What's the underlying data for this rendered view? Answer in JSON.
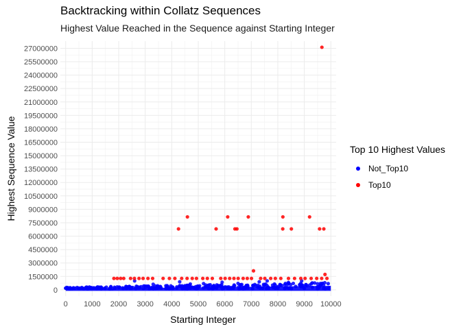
{
  "chart_data": {
    "type": "scatter",
    "title": "Backtracking within Collatz Sequences",
    "subtitle": "Highest Value Reached in the Sequence against Starting Integer",
    "xlabel": "Starting Integer",
    "ylabel": "Highest Sequence Value",
    "xlim": [
      -200,
      10200
    ],
    "ylim": [
      -700000,
      27800000
    ],
    "x_ticks": [
      0,
      1000,
      2000,
      3000,
      4000,
      5000,
      6000,
      7000,
      8000,
      9000,
      10000
    ],
    "y_ticks": [
      0,
      1500000,
      3000000,
      4500000,
      6000000,
      7500000,
      9000000,
      10500000,
      12000000,
      13500000,
      15000000,
      16500000,
      18000000,
      19500000,
      21000000,
      22500000,
      24000000,
      25500000,
      27000000
    ],
    "y_tick_labels": [
      "0",
      "1500000",
      "3000000",
      "4500000",
      "6000000",
      "7500000",
      "9000000",
      "10500000",
      "12000000",
      "13500000",
      "15000000",
      "16500000",
      "18000000",
      "19500000",
      "21000000",
      "22500000",
      "24000000",
      "25500000",
      "27000000"
    ],
    "x_tick_labels": [
      "0",
      "1000",
      "2000",
      "3000",
      "4000",
      "5000",
      "6000",
      "7000",
      "8000",
      "9000",
      "10000"
    ],
    "grid": true,
    "legend": {
      "title": "Top 10 Highest Values",
      "position": "right",
      "entries": [
        {
          "label": "Not_Top10",
          "color": "#0000ff"
        },
        {
          "label": "Top10",
          "color": "#ff0000"
        }
      ]
    },
    "series": [
      {
        "name": "Top10",
        "color": "#ff0000",
        "points": [
          [
            9663,
            27114424
          ],
          [
            4255,
            6810136
          ],
          [
            4591,
            8153620
          ],
          [
            5673,
            6810136
          ],
          [
            6110,
            8153620
          ],
          [
            6383,
            6810136
          ],
          [
            6458,
            6810136
          ],
          [
            6887,
            8153620
          ],
          [
            8186,
            6810136
          ],
          [
            8191,
            8153620
          ],
          [
            8511,
            6810136
          ],
          [
            9198,
            8153620
          ],
          [
            9575,
            6810136
          ],
          [
            9735,
            6810136
          ],
          [
            7083,
            2124580
          ],
          [
            9780,
            1721500
          ],
          [
            1819,
            1276936
          ],
          [
            1945,
            1276936
          ],
          [
            2073,
            1276936
          ],
          [
            2189,
            1276936
          ],
          [
            2447,
            1276936
          ],
          [
            2593,
            1276936
          ],
          [
            2766,
            1276936
          ],
          [
            2919,
            1276936
          ],
          [
            3103,
            1276936
          ],
          [
            3279,
            1276936
          ],
          [
            3675,
            1276936
          ],
          [
            3911,
            1276936
          ],
          [
            4118,
            1276936
          ],
          [
            4375,
            1276936
          ],
          [
            4579,
            1276936
          ],
          [
            4773,
            1276936
          ],
          [
            4933,
            1276936
          ],
          [
            5171,
            1276936
          ],
          [
            5342,
            1276936
          ],
          [
            5530,
            1276936
          ],
          [
            5849,
            1276936
          ],
          [
            6013,
            1276936
          ],
          [
            6184,
            1276936
          ],
          [
            6346,
            1276936
          ],
          [
            6505,
            1276936
          ],
          [
            6693,
            1276936
          ],
          [
            6848,
            1276936
          ],
          [
            7007,
            1276936
          ],
          [
            7353,
            1276936
          ],
          [
            7511,
            1276936
          ],
          [
            7732,
            1276936
          ],
          [
            7906,
            1276936
          ],
          [
            8113,
            1276936
          ],
          [
            8402,
            1276936
          ],
          [
            8632,
            1276936
          ],
          [
            8867,
            1276936
          ],
          [
            9028,
            1276936
          ],
          [
            9257,
            1276936
          ],
          [
            9467,
            1276936
          ],
          [
            9654,
            1276936
          ],
          [
            9853,
            1276936
          ]
        ]
      },
      {
        "name": "Not_Top10",
        "color": "#0000ff",
        "points": [
          [
            2600,
            1000000
          ],
          [
            3300,
            620000
          ],
          [
            4300,
            900000
          ],
          [
            4700,
            650000
          ],
          [
            5200,
            700000
          ],
          [
            5900,
            850000
          ],
          [
            6500,
            720000
          ],
          [
            7300,
            900000
          ],
          [
            7600,
            1000000
          ],
          [
            8400,
            820000
          ],
          [
            8900,
            1000000
          ],
          [
            9300,
            780000
          ],
          [
            9500,
            680000
          ],
          [
            9900,
            700000
          ]
        ]
      }
    ]
  }
}
